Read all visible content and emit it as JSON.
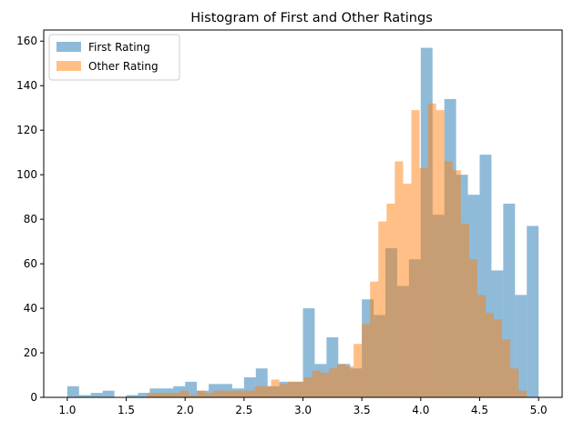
{
  "chart_data": {
    "type": "bar",
    "subtype": "histogram",
    "title": "Histogram of First and Other Ratings",
    "xlabel": "",
    "ylabel": "",
    "xlim": [
      0.8,
      5.2
    ],
    "ylim": [
      0,
      165
    ],
    "xticks": [
      "1.0",
      "1.5",
      "2.0",
      "2.5",
      "3.0",
      "3.5",
      "4.0",
      "4.5",
      "5.0"
    ],
    "yticks": [
      "0",
      "20",
      "40",
      "60",
      "80",
      "100",
      "120",
      "140",
      "160"
    ],
    "legend_position": "top-left",
    "grid": false,
    "series": [
      {
        "name": "First Rating",
        "color": "#1f77b4",
        "alpha": 0.5,
        "bins": [
          [
            1.0,
            1.1,
            5
          ],
          [
            1.1,
            1.2,
            1
          ],
          [
            1.2,
            1.3,
            2
          ],
          [
            1.3,
            1.4,
            3
          ],
          [
            1.4,
            1.5,
            0
          ],
          [
            1.5,
            1.6,
            1
          ],
          [
            1.6,
            1.7,
            2
          ],
          [
            1.7,
            1.8,
            4
          ],
          [
            1.8,
            1.9,
            4
          ],
          [
            1.9,
            2.0,
            5
          ],
          [
            2.0,
            2.1,
            7
          ],
          [
            2.1,
            2.2,
            3
          ],
          [
            2.2,
            2.3,
            6
          ],
          [
            2.3,
            2.4,
            6
          ],
          [
            2.4,
            2.5,
            4
          ],
          [
            2.5,
            2.6,
            9
          ],
          [
            2.6,
            2.7,
            13
          ],
          [
            2.7,
            2.8,
            5
          ],
          [
            2.8,
            2.9,
            7
          ],
          [
            2.9,
            3.0,
            7
          ],
          [
            3.0,
            3.1,
            40
          ],
          [
            3.1,
            3.2,
            15
          ],
          [
            3.2,
            3.3,
            27
          ],
          [
            3.3,
            3.4,
            15
          ],
          [
            3.4,
            3.5,
            13
          ],
          [
            3.5,
            3.6,
            44
          ],
          [
            3.6,
            3.7,
            37
          ],
          [
            3.7,
            3.8,
            67
          ],
          [
            3.8,
            3.9,
            50
          ],
          [
            3.9,
            4.0,
            62
          ],
          [
            4.0,
            4.1,
            157
          ],
          [
            4.1,
            4.2,
            82
          ],
          [
            4.2,
            4.3,
            134
          ],
          [
            4.3,
            4.4,
            100
          ],
          [
            4.4,
            4.5,
            91
          ],
          [
            4.5,
            4.6,
            109
          ],
          [
            4.6,
            4.7,
            57
          ],
          [
            4.7,
            4.8,
            87
          ],
          [
            4.8,
            4.9,
            46
          ],
          [
            4.9,
            5.0,
            77
          ]
        ]
      },
      {
        "name": "Other Rating",
        "color": "#ff7f0e",
        "alpha": 0.5,
        "bins": [
          [
            1.68,
            1.75,
            2
          ],
          [
            1.75,
            1.82,
            2
          ],
          [
            1.82,
            1.89,
            2
          ],
          [
            1.89,
            1.96,
            2
          ],
          [
            1.96,
            2.03,
            3
          ],
          [
            2.03,
            2.1,
            1
          ],
          [
            2.1,
            2.17,
            3
          ],
          [
            2.17,
            2.24,
            2
          ],
          [
            2.24,
            2.31,
            3
          ],
          [
            2.31,
            2.38,
            3
          ],
          [
            2.38,
            2.45,
            3
          ],
          [
            2.45,
            2.52,
            3
          ],
          [
            2.52,
            2.59,
            3
          ],
          [
            2.59,
            2.66,
            5
          ],
          [
            2.66,
            2.73,
            5
          ],
          [
            2.73,
            2.8,
            8
          ],
          [
            2.8,
            2.87,
            6
          ],
          [
            2.87,
            2.94,
            7
          ],
          [
            2.94,
            3.01,
            7
          ],
          [
            3.01,
            3.08,
            9
          ],
          [
            3.08,
            3.15,
            12
          ],
          [
            3.15,
            3.22,
            11
          ],
          [
            3.22,
            3.29,
            13
          ],
          [
            3.29,
            3.36,
            15
          ],
          [
            3.36,
            3.43,
            14
          ],
          [
            3.43,
            3.5,
            24
          ],
          [
            3.5,
            3.57,
            33
          ],
          [
            3.57,
            3.64,
            52
          ],
          [
            3.64,
            3.71,
            79
          ],
          [
            3.71,
            3.78,
            87
          ],
          [
            3.78,
            3.85,
            106
          ],
          [
            3.85,
            3.92,
            96
          ],
          [
            3.92,
            3.99,
            129
          ],
          [
            3.99,
            4.06,
            103
          ],
          [
            4.06,
            4.13,
            132
          ],
          [
            4.13,
            4.2,
            129
          ],
          [
            4.2,
            4.27,
            106
          ],
          [
            4.27,
            4.34,
            102
          ],
          [
            4.34,
            4.41,
            78
          ],
          [
            4.41,
            4.48,
            62
          ],
          [
            4.48,
            4.55,
            46
          ],
          [
            4.55,
            4.62,
            38
          ],
          [
            4.62,
            4.69,
            35
          ],
          [
            4.69,
            4.76,
            26
          ],
          [
            4.76,
            4.83,
            13
          ],
          [
            4.83,
            4.9,
            3
          ]
        ]
      }
    ]
  }
}
